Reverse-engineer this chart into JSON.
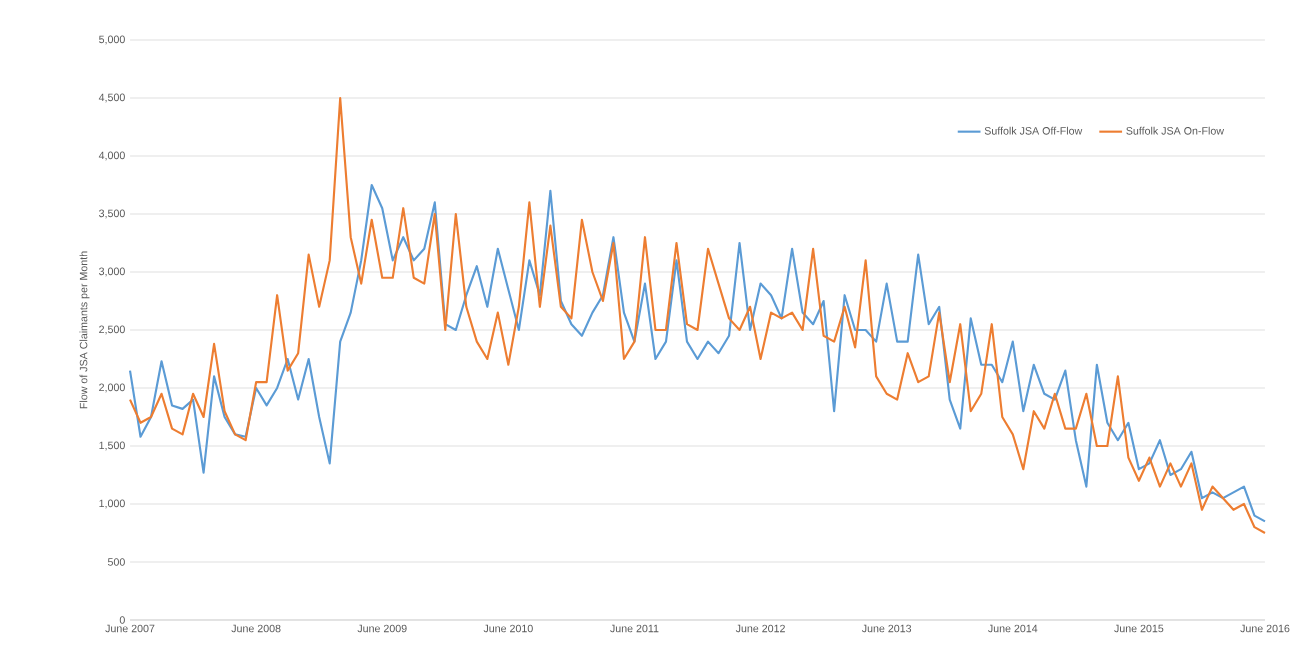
{
  "chart_data": {
    "type": "line",
    "ylabel": "Flow of JSA Claimants per Month",
    "categories": [
      "June 2007",
      null,
      null,
      null,
      null,
      null,
      null,
      null,
      null,
      null,
      null,
      null,
      "June 2008",
      null,
      null,
      null,
      null,
      null,
      null,
      null,
      null,
      null,
      null,
      null,
      "June 2009",
      null,
      null,
      null,
      null,
      null,
      null,
      null,
      null,
      null,
      null,
      null,
      "June 2010",
      null,
      null,
      null,
      null,
      null,
      null,
      null,
      null,
      null,
      null,
      null,
      "June 2011",
      null,
      null,
      null,
      null,
      null,
      null,
      null,
      null,
      null,
      null,
      null,
      "June 2012",
      null,
      null,
      null,
      null,
      null,
      null,
      null,
      null,
      null,
      null,
      null,
      "June 2013",
      null,
      null,
      null,
      null,
      null,
      null,
      null,
      null,
      null,
      null,
      null,
      "June 2014",
      null,
      null,
      null,
      null,
      null,
      null,
      null,
      null,
      null,
      null,
      null,
      "June 2015",
      null,
      null,
      null,
      null,
      null,
      null,
      null,
      null,
      null,
      null,
      null,
      "June 2016"
    ],
    "series": [
      {
        "name": "Suffolk JSA Off-Flow",
        "color": "#5b9bd5",
        "values": [
          2150,
          1580,
          1750,
          2230,
          1850,
          1820,
          1900,
          1270,
          2100,
          1750,
          1600,
          1580,
          2000,
          1850,
          2000,
          2250,
          1900,
          2250,
          1750,
          1350,
          2400,
          2650,
          3100,
          3750,
          3550,
          3100,
          3300,
          3100,
          3200,
          3600,
          2550,
          2500,
          2800,
          3050,
          2700,
          3200,
          2850,
          2500,
          3100,
          2800,
          3700,
          2750,
          2550,
          2450,
          2650,
          2800,
          3300,
          2650,
          2400,
          2900,
          2250,
          2400,
          3100,
          2400,
          2250,
          2400,
          2300,
          2450,
          3250,
          2500,
          2900,
          2800,
          2600,
          3200,
          2650,
          2550,
          2750,
          1800,
          2800,
          2500,
          2500,
          2400,
          2900,
          2400,
          2400,
          3150,
          2550,
          2700,
          1900,
          1650,
          2600,
          2200,
          2200,
          2050,
          2400,
          1800,
          2200,
          1950,
          1900,
          2150,
          1550,
          1150,
          2200,
          1700,
          1550,
          1700,
          1300,
          1350,
          1550,
          1250,
          1300,
          1450,
          1050,
          1100,
          1050,
          1100,
          1150,
          900,
          850
        ]
      },
      {
        "name": "Suffolk JSA On-Flow",
        "color": "#ed7d31",
        "values": [
          1900,
          1700,
          1750,
          1950,
          1650,
          1600,
          1950,
          1750,
          2380,
          1800,
          1600,
          1550,
          2050,
          2050,
          2800,
          2150,
          2300,
          3150,
          2700,
          3100,
          4500,
          3300,
          2900,
          3450,
          2950,
          2950,
          3550,
          2950,
          2900,
          3500,
          2500,
          3500,
          2700,
          2400,
          2250,
          2650,
          2200,
          2700,
          3600,
          2700,
          3400,
          2700,
          2600,
          3450,
          3000,
          2750,
          3250,
          2250,
          2400,
          3300,
          2500,
          2500,
          3250,
          2550,
          2500,
          3200,
          2900,
          2600,
          2500,
          2700,
          2250,
          2650,
          2600,
          2650,
          2500,
          3200,
          2450,
          2400,
          2700,
          2350,
          3100,
          2100,
          1950,
          1900,
          2300,
          2050,
          2100,
          2650,
          2050,
          2550,
          1800,
          1950,
          2550,
          1750,
          1600,
          1300,
          1800,
          1650,
          1950,
          1650,
          1650,
          1950,
          1500,
          1500,
          2100,
          1400,
          1200,
          1400,
          1150,
          1350,
          1150,
          1350,
          950,
          1150,
          1050,
          950,
          1000,
          800,
          750
        ]
      }
    ],
    "ylim": [
      0,
      5000
    ],
    "yticks": [
      0,
      500,
      {
        "value": 1000,
        "label": "1,000"
      },
      {
        "value": 1500,
        "label": "1,500"
      },
      {
        "value": 2000,
        "label": "2,000"
      },
      {
        "value": 2500,
        "label": "2,500"
      },
      {
        "value": 3000,
        "label": "3,000"
      },
      {
        "value": 3500,
        "label": "3,500"
      },
      {
        "value": 4000,
        "label": "4,000"
      },
      {
        "value": 4500,
        "label": "4,500"
      },
      {
        "value": 5000,
        "label": "5,000"
      }
    ],
    "grid": "y",
    "legend": "top right",
    "marker": "none",
    "line_style": "solid"
  }
}
